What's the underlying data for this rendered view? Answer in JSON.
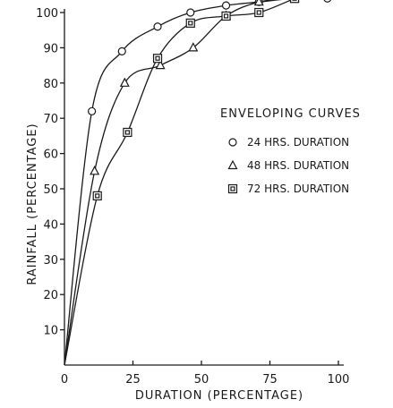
{
  "chart_data": {
    "type": "line",
    "xlabel": "DURATION (PERCENTAGE)",
    "ylabel": "RAINFALL (PERCENTAGE)",
    "xlim": [
      0,
      100
    ],
    "ylim": [
      0,
      100
    ],
    "x_ticks": [
      "0",
      "25",
      "50",
      "75",
      "100"
    ],
    "y_ticks": [
      "10",
      "20",
      "30",
      "40",
      "50",
      "60",
      "70",
      "80",
      "90",
      "100"
    ],
    "grid": false,
    "legend_title": "ENVELOPING CURVES",
    "legend_position": "right",
    "series": [
      {
        "name": "24 HRS. DURATION",
        "marker": "circle",
        "x": [
          0,
          10,
          21,
          34,
          46,
          59,
          71,
          84,
          96
        ],
        "y": [
          0,
          72,
          89,
          96,
          100,
          102,
          103,
          104,
          104
        ]
      },
      {
        "name": "48 HRS. DURATION",
        "marker": "triangle",
        "x": [
          0,
          11,
          22,
          35,
          47,
          59,
          71,
          84
        ],
        "y": [
          0,
          55,
          80,
          85,
          90,
          99,
          103,
          104
        ]
      },
      {
        "name": "72 HRS. DURATION",
        "marker": "square",
        "x": [
          0,
          12,
          23,
          34,
          46,
          59,
          71,
          84
        ],
        "y": [
          0,
          48,
          66,
          87,
          97,
          99,
          100,
          104
        ]
      }
    ]
  }
}
